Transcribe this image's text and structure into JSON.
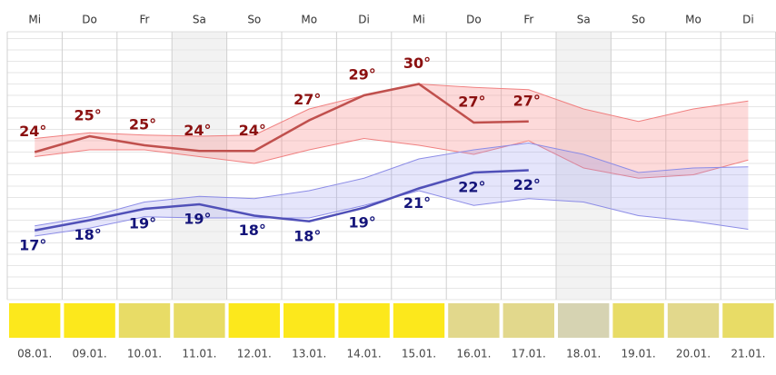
{
  "chart_data": {
    "type": "line",
    "categories": [
      "Mi",
      "Do",
      "Fr",
      "Sa",
      "So",
      "Mo",
      "Di",
      "Mi",
      "Do",
      "Fr",
      "Sa",
      "So",
      "Mo",
      "Di"
    ],
    "dates": [
      "08.01.",
      "09.01.",
      "10.01.",
      "11.01.",
      "12.01.",
      "13.01.",
      "14.01.",
      "15.01.",
      "16.01.",
      "17.01.",
      "18.01.",
      "19.01.",
      "20.01.",
      "21.01."
    ],
    "shaded_columns": [
      3,
      10
    ],
    "ylim": [
      11,
      34.6
    ],
    "yticks": [
      11,
      12,
      13,
      14,
      15,
      16,
      17,
      18,
      19,
      20,
      21,
      22,
      23,
      24,
      25,
      26,
      27,
      28,
      29,
      30,
      31,
      32,
      33,
      34
    ],
    "grid": true,
    "series": [
      {
        "color": "#c0504d",
        "label_color": "#8b1010",
        "values": [
          24.0,
          25.4,
          24.6,
          24.1,
          24.1,
          26.8,
          29.0,
          30.0,
          26.6,
          26.7,
          null,
          null,
          null,
          null
        ],
        "value_labels": [
          "24°",
          "25°",
          "25°",
          "24°",
          "24°",
          "27°",
          "29°",
          "30°",
          "27°",
          "27°",
          null,
          null,
          null,
          null
        ]
      },
      {
        "color": "#5050b8",
        "label_color": "#14147a",
        "values": [
          17.1,
          18.0,
          19.0,
          19.4,
          18.4,
          17.9,
          19.1,
          20.8,
          22.2,
          22.4,
          null,
          null,
          null,
          null
        ],
        "value_labels": [
          "17°",
          "18°",
          "19°",
          "19°",
          "18°",
          "18°",
          "19°",
          "21°",
          "22°",
          "22°",
          null,
          null,
          null,
          null
        ]
      }
    ],
    "bands": [
      {
        "color": "#f08080",
        "fill": "rgba(250,150,150,0.35)",
        "upper": [
          25.2,
          25.7,
          25.5,
          25.4,
          25.5,
          27.8,
          29.0,
          30.0,
          29.7,
          29.5,
          27.8,
          26.7,
          27.8,
          28.5
        ],
        "lower": [
          23.6,
          24.2,
          24.2,
          23.6,
          23.0,
          24.2,
          25.2,
          24.6,
          23.8,
          25.0,
          22.6,
          21.7,
          22.0,
          23.3
        ]
      },
      {
        "color": "#8c8ce6",
        "fill": "rgba(150,150,240,0.25)",
        "upper": [
          17.5,
          18.3,
          19.6,
          20.1,
          19.9,
          20.6,
          21.7,
          23.4,
          24.2,
          24.8,
          23.8,
          22.2,
          22.6,
          22.7
        ],
        "lower": [
          16.6,
          17.3,
          18.3,
          18.2,
          18.2,
          18.2,
          19.3,
          20.6,
          19.3,
          19.9,
          19.6,
          18.4,
          17.9,
          17.2
        ]
      }
    ],
    "condition_colors": [
      "#fce81c",
      "#fce81c",
      "#e8dc66",
      "#e8dc66",
      "#fce81c",
      "#fce81c",
      "#fce81c",
      "#fce81c",
      "#e2d88c",
      "#e2d88c",
      "#d6d3b2",
      "#e8dc66",
      "#e2d88c",
      "#e8dc66"
    ]
  }
}
